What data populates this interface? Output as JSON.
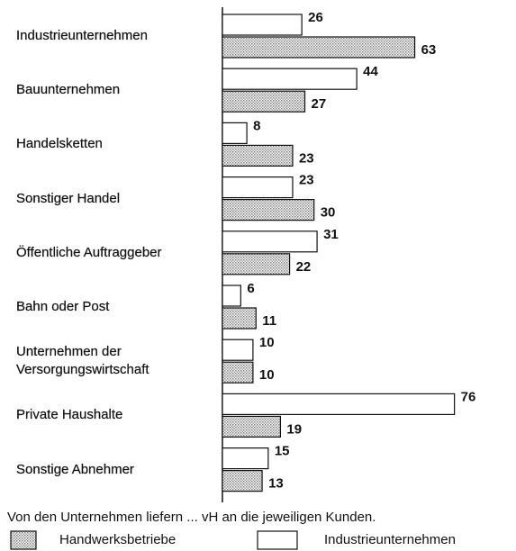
{
  "chart_data": {
    "type": "hbar",
    "title": "Von den Unternehmen liefern ... vH an die jeweiligen Kunden.",
    "categories": [
      "Industrieunternehmen",
      "Bauunternehmen",
      "Handelsketten",
      "Sonstiger Handel",
      "Öffentliche Auftraggeber",
      "Bahn oder Post",
      "Unternehmen der\nVersorgungswirtschaft",
      "Private Haushalte",
      "Sonstige Abnehmer"
    ],
    "series": [
      {
        "name": "Handwerksbetriebe",
        "color": "#808080",
        "pattern": "dots",
        "values": [
          63,
          27,
          23,
          30,
          22,
          11,
          10,
          19,
          13
        ]
      },
      {
        "name": "Industrieunternehmen",
        "color": "#ffffff",
        "values": [
          26,
          44,
          8,
          23,
          31,
          6,
          10,
          76,
          15
        ]
      }
    ]
  }
}
